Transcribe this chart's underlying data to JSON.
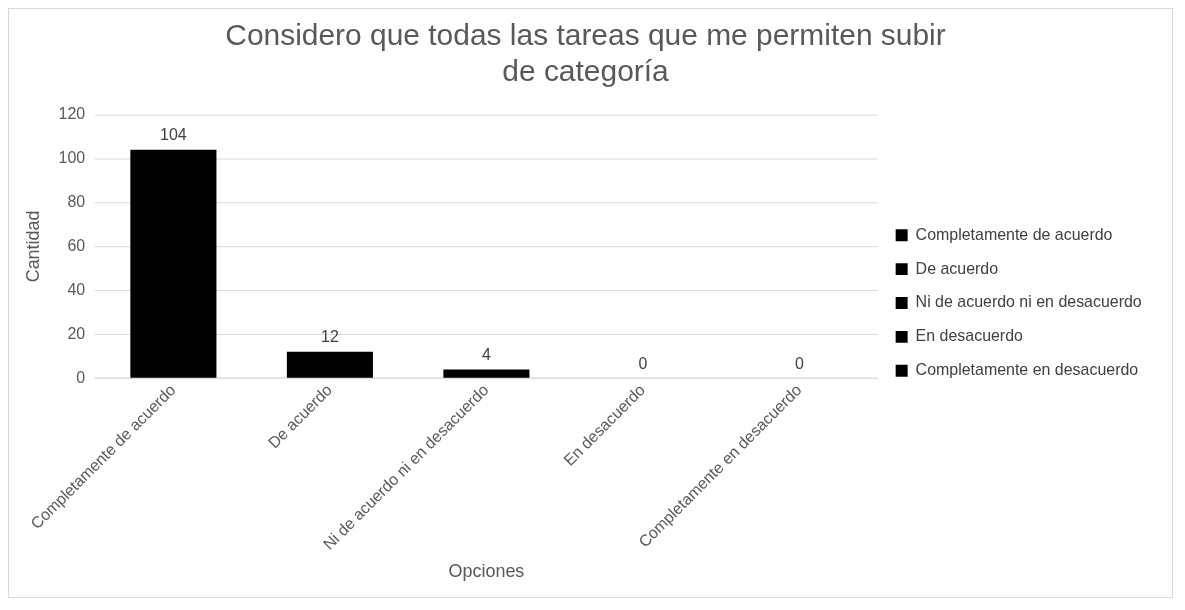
{
  "chart_data": {
    "type": "bar",
    "title": "Considero que todas las tareas que me permiten subir de categoría",
    "xlabel": "Opciones",
    "ylabel": "Cantidad",
    "categories": [
      "Completamente de acuerdo",
      "De acuerdo",
      "Ni de acuerdo ni en desacuerdo",
      "En desacuerdo",
      "Completamente en desacuerdo"
    ],
    "series": [
      {
        "name": "Completamente de acuerdo",
        "color": "#000000",
        "values": [
          104,
          null,
          null,
          null,
          null
        ]
      },
      {
        "name": "De acuerdo",
        "color": "#000000",
        "values": [
          null,
          12,
          null,
          null,
          null
        ]
      },
      {
        "name": "Ni de acuerdo ni en desacuerdo",
        "color": "#000000",
        "values": [
          null,
          null,
          4,
          null,
          null
        ]
      },
      {
        "name": "En desacuerdo",
        "color": "#000000",
        "values": [
          null,
          null,
          null,
          0,
          null
        ]
      },
      {
        "name": "Completamente en desacuerdo",
        "color": "#000000",
        "values": [
          null,
          null,
          null,
          null,
          0
        ]
      }
    ],
    "ylim": [
      0,
      120
    ],
    "yticks": [
      0,
      20,
      40,
      60,
      80,
      100,
      120
    ],
    "grid": "y",
    "legend": "right",
    "data_labels": true
  }
}
